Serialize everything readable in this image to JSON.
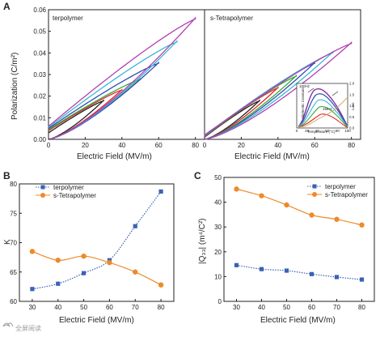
{
  "figure": {
    "watermark": "全屏阅读"
  },
  "chart_data": [
    {
      "panel": "A",
      "type": "line",
      "title": "terpolymer",
      "xlabel": "Electric Field (MV/m)",
      "ylabel": "Polarization (C/m²)",
      "xlim": [
        0,
        85
      ],
      "ylim": [
        0,
        0.06
      ],
      "xticks": [
        "0",
        "20",
        "40",
        "60",
        "80"
      ],
      "yticks": [
        "0.00",
        "0.01",
        "0.02",
        "0.03",
        "0.04",
        "0.05",
        "0.06"
      ],
      "grid": false,
      "loops": [
        {
          "emax": 30,
          "pmax": 0.018,
          "pr": 0.003,
          "color": "#222222"
        },
        {
          "emax": 40,
          "pmax": 0.023,
          "pr": 0.004,
          "color": "#e0262d"
        },
        {
          "emax": 50,
          "pmax": 0.028,
          "pr": 0.0045,
          "color": "#3aaa35"
        },
        {
          "emax": 60,
          "pmax": 0.0355,
          "pr": 0.005,
          "color": "#2d4fb0"
        },
        {
          "emax": 70,
          "pmax": 0.0455,
          "pr": 0.0055,
          "color": "#3ab6d6"
        },
        {
          "emax": 80,
          "pmax": 0.0562,
          "pr": 0.006,
          "color": "#b23fb2"
        }
      ]
    },
    {
      "panel": "A",
      "type": "line",
      "title": "s-Tetrapolymer",
      "xlabel": "Electric Field (MV/m)",
      "xlim": [
        0,
        85
      ],
      "ylim": [
        0,
        0.06
      ],
      "xticks": [
        "0",
        "20",
        "40",
        "60",
        "80"
      ],
      "grid": false,
      "loops": [
        {
          "emax": 30,
          "pmax": 0.018,
          "pr": 0.001,
          "color": "#222222"
        },
        {
          "emax": 40,
          "pmax": 0.024,
          "pr": 0.0012,
          "color": "#e0262d"
        },
        {
          "emax": 50,
          "pmax": 0.0295,
          "pr": 0.0014,
          "color": "#3aaa35"
        },
        {
          "emax": 60,
          "pmax": 0.0355,
          "pr": 0.0016,
          "color": "#2d4fb0"
        },
        {
          "emax": 70,
          "pmax": 0.0405,
          "pr": 0.0018,
          "color": "#3ab6d6"
        },
        {
          "emax": 80,
          "pmax": 0.0448,
          "pr": 0.002,
          "color": "#b23fb2"
        }
      ],
      "inset": {
        "xlabel": "Temperature (°C)",
        "ylabel_left": "Dielectric Constant",
        "ylabel_right": "Loss",
        "xticks": [
          "0",
          "20",
          "40",
          "60",
          "80",
          "100"
        ],
        "yticks_left": [
          "0",
          "20",
          "40",
          "60",
          "80"
        ],
        "yticks_right": [
          "0.0",
          "0.5",
          "1.0",
          "1.5",
          "2.0"
        ],
        "labels": [
          "100Hz",
          "1MHz"
        ]
      }
    },
    {
      "panel": "B",
      "type": "line",
      "xlabel": "Electric Field (MV/m)",
      "ylabel": "K",
      "xlim": [
        25,
        85
      ],
      "ylim": [
        60,
        80
      ],
      "xticks": [
        "30",
        "40",
        "50",
        "60",
        "70",
        "80"
      ],
      "yticks": [
        "60",
        "65",
        "70",
        "75",
        "80"
      ],
      "legend_position": "top-left",
      "x": [
        30,
        40,
        50,
        60,
        70,
        80
      ],
      "series": [
        {
          "name": "terpolymer",
          "values": [
            62.1,
            63.0,
            64.8,
            67.0,
            72.8,
            78.7
          ],
          "color": "#3a62b5",
          "marker": "square",
          "line": "dotted"
        },
        {
          "name": "s-Tetrapolymer",
          "values": [
            68.5,
            67.0,
            67.7,
            66.6,
            65.0,
            62.8
          ],
          "color": "#ee8a2a",
          "marker": "circle",
          "line": "solid"
        }
      ]
    },
    {
      "panel": "C",
      "type": "line",
      "xlabel": "Electric Field (MV/m)",
      "ylabel": "|Q₃₃| (m⁴/C²)",
      "xlim": [
        25,
        85
      ],
      "ylim": [
        0,
        50
      ],
      "xticks": [
        "30",
        "40",
        "50",
        "60",
        "70",
        "80"
      ],
      "yticks": [
        "0",
        "10",
        "20",
        "30",
        "40",
        "50"
      ],
      "legend_position": "top-right",
      "x": [
        30,
        40,
        50,
        60,
        70,
        80
      ],
      "series": [
        {
          "name": "terpolymer",
          "values": [
            14.6,
            13.0,
            12.4,
            11.0,
            9.8,
            8.8
          ],
          "color": "#3a62b5",
          "marker": "square",
          "line": "dotted"
        },
        {
          "name": "s-Tetrapolymer",
          "values": [
            45.3,
            42.6,
            38.9,
            34.8,
            33.1,
            30.8
          ],
          "color": "#ee8a2a",
          "marker": "circle",
          "line": "solid"
        }
      ]
    }
  ]
}
